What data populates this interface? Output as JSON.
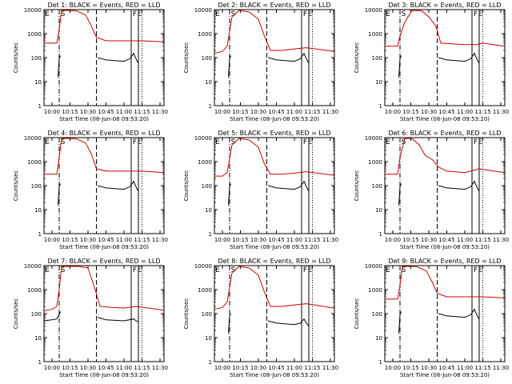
{
  "figure": {
    "title_template": "Det {n}: BLACK = Events, RED = LLD",
    "xlabel": "Start Time (08-Jun-08 09:53:20)",
    "ylabel": "Counts/sec"
  },
  "chart_data": [
    {
      "type": "line",
      "title": "Det 1: BLACK = Events, RED = LLD",
      "xlabel": "Start Time (08-Jun-08 09:53:20)",
      "ylabel": "Counts/sec",
      "xlim": [
        "09:53:20",
        "11:33:20"
      ],
      "ylim": [
        1,
        10000
      ],
      "yscale": "log",
      "xticks": [
        "10:00",
        "10:15",
        "10:30",
        "10:45",
        "11:00",
        "11:15",
        "11:30"
      ],
      "yticks": [
        "1",
        "10",
        "100",
        "1000",
        "10000"
      ],
      "markers": [
        "E",
        "S",
        "F",
        "E"
      ],
      "series": [
        {
          "name": "Events",
          "color": "#000000",
          "x": [
            "10:05",
            "10:06",
            "10:07",
            "10:37",
            "10:38",
            "10:45",
            "11:00",
            "11:05",
            "11:08",
            "11:10",
            "11:11",
            "11:12"
          ],
          "y": [
            15,
            90,
            120,
            null,
            100,
            80,
            70,
            90,
            150,
            90,
            70,
            60
          ]
        },
        {
          "name": "LLD",
          "color": "#cc0000",
          "x": [
            "09:53",
            "10:04",
            "10:06",
            "10:08",
            "10:12",
            "10:20",
            "10:28",
            "10:33",
            "10:37",
            "10:45",
            "11:00",
            "11:15",
            "11:33"
          ],
          "y": [
            400,
            400,
            1500,
            10000,
            12000,
            9000,
            6000,
            2000,
            700,
            500,
            500,
            500,
            450
          ]
        }
      ]
    },
    {
      "type": "line",
      "title": "Det 2: BLACK = Events, RED = LLD",
      "xlabel": "Start Time (08-Jun-08 09:53:20)",
      "ylabel": "Counts/sec",
      "xlim": [
        "09:53:20",
        "11:33:20"
      ],
      "ylim": [
        1,
        10000
      ],
      "yscale": "log",
      "xticks": [
        "10:00",
        "10:15",
        "10:30",
        "10:45",
        "11:00",
        "11:15",
        "11:30"
      ],
      "yticks": [
        "1",
        "10",
        "100",
        "1000",
        "10000"
      ],
      "markers": [
        "E",
        "S",
        "F",
        "E"
      ],
      "series": [
        {
          "name": "Events",
          "color": "#000000",
          "x": [
            "10:05",
            "10:06",
            "10:07",
            "10:37",
            "10:38",
            "10:45",
            "11:00",
            "11:05",
            "11:08",
            "11:10",
            "11:11",
            "11:12"
          ],
          "y": [
            15,
            90,
            120,
            null,
            100,
            80,
            70,
            90,
            150,
            90,
            70,
            60
          ]
        },
        {
          "name": "LLD",
          "color": "#cc0000",
          "x": [
            "09:53",
            "10:00",
            "10:04",
            "10:08",
            "10:14",
            "10:22",
            "10:30",
            "10:35",
            "10:40",
            "10:50",
            "11:00",
            "11:10",
            "11:33"
          ],
          "y": [
            150,
            180,
            300,
            5000,
            12000,
            8000,
            4000,
            800,
            200,
            200,
            230,
            260,
            180
          ]
        }
      ]
    },
    {
      "type": "line",
      "title": "Det 3: BLACK = Events, RED = LLD",
      "xlabel": "Start Time (08-Jun-08 09:53:20)",
      "ylabel": "Counts/sec",
      "xlim": [
        "09:53:20",
        "11:33:20"
      ],
      "ylim": [
        1,
        10000
      ],
      "yscale": "log",
      "xticks": [
        "10:00",
        "10:15",
        "10:30",
        "10:45",
        "11:00",
        "11:15",
        "11:30"
      ],
      "yticks": [
        "1",
        "10",
        "100",
        "1000",
        "10000"
      ],
      "markers": [
        "E",
        "S",
        "F",
        "E"
      ],
      "series": [
        {
          "name": "Events",
          "color": "#000000",
          "x": [
            "10:05",
            "10:06",
            "10:07",
            "10:37",
            "10:38",
            "10:45",
            "11:00",
            "11:05",
            "11:08",
            "11:10",
            "11:11",
            "11:12"
          ],
          "y": [
            15,
            90,
            120,
            null,
            100,
            80,
            70,
            90,
            150,
            90,
            70,
            60
          ]
        },
        {
          "name": "LLD",
          "color": "#cc0000",
          "x": [
            "09:53",
            "10:04",
            "10:06",
            "10:10",
            "10:16",
            "10:24",
            "10:30",
            "10:36",
            "10:40",
            "11:00",
            "11:10",
            "11:15",
            "11:33"
          ],
          "y": [
            300,
            300,
            800,
            3000,
            10000,
            9000,
            5000,
            2000,
            400,
            350,
            350,
            400,
            300
          ]
        }
      ]
    },
    {
      "type": "line",
      "title": "Det 4: BLACK = Events, RED = LLD",
      "xlabel": "Start Time (08-Jun-08 09:53:20)",
      "ylabel": "Counts/sec",
      "xlim": [
        "09:53:20",
        "11:33:20"
      ],
      "ylim": [
        1,
        10000
      ],
      "yscale": "log",
      "xticks": [
        "10:00",
        "10:15",
        "10:30",
        "10:45",
        "11:00",
        "11:15",
        "11:30"
      ],
      "yticks": [
        "1",
        "10",
        "100",
        "1000",
        "10000"
      ],
      "markers": [
        "E",
        "S",
        "F",
        "E"
      ],
      "series": [
        {
          "name": "Events",
          "color": "#000000",
          "x": [
            "10:05",
            "10:06",
            "10:07",
            "10:37",
            "10:38",
            "10:45",
            "11:00",
            "11:05",
            "11:08",
            "11:10",
            "11:11",
            "11:12"
          ],
          "y": [
            15,
            90,
            120,
            null,
            100,
            80,
            70,
            90,
            150,
            90,
            70,
            60
          ]
        },
        {
          "name": "LLD",
          "color": "#cc0000",
          "x": [
            "09:53",
            "10:04",
            "10:06",
            "10:08",
            "10:12",
            "10:20",
            "10:28",
            "10:33",
            "10:37",
            "10:45",
            "11:00",
            "11:15",
            "11:33"
          ],
          "y": [
            300,
            300,
            1500,
            10000,
            12000,
            9000,
            6000,
            2000,
            500,
            400,
            400,
            400,
            350
          ]
        }
      ]
    },
    {
      "type": "line",
      "title": "Det 5: BLACK = Events, RED = LLD",
      "xlabel": "Start Time (08-Jun-08 09:53:20)",
      "ylabel": "Counts/sec",
      "xlim": [
        "09:53:20",
        "11:33:20"
      ],
      "ylim": [
        1,
        10000
      ],
      "yscale": "log",
      "xticks": [
        "10:00",
        "10:15",
        "10:30",
        "10:45",
        "11:00",
        "11:15",
        "11:30"
      ],
      "yticks": [
        "1",
        "10",
        "100",
        "1000",
        "10000"
      ],
      "markers": [
        "E",
        "S",
        "F",
        "E"
      ],
      "series": [
        {
          "name": "Events",
          "color": "#000000",
          "x": [
            "10:05",
            "10:06",
            "10:07",
            "10:37",
            "10:38",
            "10:45",
            "11:00",
            "11:05",
            "11:08",
            "11:10",
            "11:11",
            "11:12"
          ],
          "y": [
            15,
            90,
            120,
            null,
            100,
            80,
            70,
            90,
            150,
            90,
            70,
            60
          ]
        },
        {
          "name": "LLD",
          "color": "#cc0000",
          "x": [
            "09:53",
            "10:00",
            "10:04",
            "10:08",
            "10:14",
            "10:22",
            "10:30",
            "10:35",
            "10:40",
            "10:50",
            "11:00",
            "11:10",
            "11:33"
          ],
          "y": [
            250,
            250,
            350,
            5000,
            12000,
            8000,
            4000,
            800,
            300,
            300,
            330,
            380,
            270
          ]
        }
      ]
    },
    {
      "type": "line",
      "title": "Det 6: BLACK = Events, RED = LLD",
      "xlabel": "Start Time (08-Jun-08 09:53:20)",
      "ylabel": "Counts/sec",
      "xlim": [
        "09:53:20",
        "11:33:20"
      ],
      "ylim": [
        1,
        10000
      ],
      "yscale": "log",
      "xticks": [
        "10:00",
        "10:15",
        "10:30",
        "10:45",
        "11:00",
        "11:15",
        "11:30"
      ],
      "yticks": [
        "1",
        "10",
        "100",
        "1000",
        "10000"
      ],
      "markers": [
        "E",
        "S",
        "F",
        "E"
      ],
      "series": [
        {
          "name": "Events",
          "color": "#000000",
          "x": [
            "10:05",
            "10:06",
            "10:07",
            "10:37",
            "10:38",
            "10:45",
            "11:00",
            "11:05",
            "11:08",
            "11:10",
            "11:11",
            "11:12"
          ],
          "y": [
            15,
            90,
            120,
            null,
            100,
            80,
            70,
            90,
            150,
            90,
            70,
            60
          ]
        },
        {
          "name": "LLD",
          "color": "#cc0000",
          "x": [
            "09:53",
            "10:04",
            "10:06",
            "10:10",
            "10:16",
            "10:22",
            "10:27",
            "10:33",
            "10:38",
            "10:45",
            "11:00",
            "11:12",
            "11:33"
          ],
          "y": [
            300,
            300,
            1500,
            10000,
            9000,
            5000,
            1800,
            1200,
            600,
            400,
            350,
            500,
            350
          ]
        }
      ]
    },
    {
      "type": "line",
      "title": "Det 7: BLACK = Events, RED = LLD",
      "xlabel": "Start Time (08-Jun-08 09:53:20)",
      "ylabel": "Counts/sec",
      "xlim": [
        "09:53:20",
        "11:33:20"
      ],
      "ylim": [
        1,
        10000
      ],
      "yscale": "log",
      "xticks": [
        "10:00",
        "10:15",
        "10:30",
        "10:45",
        "11:00",
        "11:15",
        "11:30"
      ],
      "yticks": [
        "1",
        "10",
        "100",
        "1000",
        "10000"
      ],
      "markers": [
        "E",
        "S",
        "F",
        "E"
      ],
      "series": [
        {
          "name": "Events",
          "color": "#000000",
          "x": [
            "09:53",
            "10:00",
            "10:04",
            "10:06",
            "10:07",
            "10:37",
            "10:38",
            "10:45",
            "11:00",
            "11:08",
            "11:10",
            "11:12"
          ],
          "y": [
            50,
            55,
            60,
            90,
            120,
            null,
            70,
            55,
            50,
            60,
            50,
            45
          ]
        },
        {
          "name": "LLD",
          "color": "#cc0000",
          "x": [
            "09:53",
            "10:00",
            "10:04",
            "10:06",
            "10:08",
            "10:14",
            "10:22",
            "10:30",
            "10:36",
            "10:40",
            "10:50",
            "11:00",
            "11:10",
            "11:33"
          ],
          "y": [
            130,
            150,
            200,
            1000,
            10000,
            12000,
            11000,
            8000,
            1000,
            200,
            180,
            170,
            200,
            140
          ]
        }
      ]
    },
    {
      "type": "line",
      "title": "Det 8: BLACK = Events, RED = LLD",
      "xlabel": "Start Time (08-Jun-08 09:53:20)",
      "ylabel": "Counts/sec",
      "xlim": [
        "09:53:20",
        "11:33:20"
      ],
      "ylim": [
        1,
        10000
      ],
      "yscale": "log",
      "xticks": [
        "10:00",
        "10:15",
        "10:30",
        "10:45",
        "11:00",
        "11:15",
        "11:30"
      ],
      "yticks": [
        "1",
        "10",
        "100",
        "1000",
        "10000"
      ],
      "markers": [
        "E",
        "S",
        "F",
        "E"
      ],
      "series": [
        {
          "name": "Events",
          "color": "#000000",
          "x": [
            "10:05",
            "10:06",
            "10:07",
            "10:37",
            "10:38",
            "10:45",
            "11:00",
            "11:05",
            "11:08",
            "11:10",
            "11:11",
            "11:12"
          ],
          "y": [
            15,
            80,
            100,
            null,
            50,
            40,
            35,
            40,
            60,
            40,
            35,
            30
          ]
        },
        {
          "name": "LLD",
          "color": "#cc0000",
          "x": [
            "09:53",
            "10:00",
            "10:04",
            "10:08",
            "10:14",
            "10:22",
            "10:30",
            "10:35",
            "10:40",
            "10:50",
            "11:00",
            "11:10",
            "11:33"
          ],
          "y": [
            150,
            180,
            300,
            5000,
            12000,
            8000,
            4000,
            800,
            200,
            200,
            230,
            260,
            170
          ]
        }
      ]
    },
    {
      "type": "line",
      "title": "Det 9: BLACK = Events, RED = LLD",
      "xlabel": "Start Time (08-Jun-08 09:53:20)",
      "ylabel": "Counts/sec",
      "xlim": [
        "09:53:20",
        "11:33:20"
      ],
      "ylim": [
        1,
        10000
      ],
      "yscale": "log",
      "xticks": [
        "10:00",
        "10:15",
        "10:30",
        "10:45",
        "11:00",
        "11:15",
        "11:30"
      ],
      "yticks": [
        "1",
        "10",
        "100",
        "1000",
        "10000"
      ],
      "markers": [
        "E",
        "S",
        "F",
        "E"
      ],
      "series": [
        {
          "name": "Events",
          "color": "#000000",
          "x": [
            "10:05",
            "10:06",
            "10:07",
            "10:37",
            "10:38",
            "10:45",
            "11:00",
            "11:05",
            "11:08",
            "11:10",
            "11:11",
            "11:12"
          ],
          "y": [
            15,
            90,
            120,
            null,
            100,
            80,
            70,
            90,
            150,
            90,
            70,
            60
          ]
        },
        {
          "name": "LLD",
          "color": "#cc0000",
          "x": [
            "09:53",
            "10:04",
            "10:06",
            "10:08",
            "10:12",
            "10:20",
            "10:28",
            "10:33",
            "10:37",
            "10:45",
            "11:00",
            "11:15",
            "11:33"
          ],
          "y": [
            400,
            400,
            1500,
            10000,
            12000,
            9000,
            6000,
            2000,
            700,
            500,
            500,
            500,
            450
          ]
        }
      ]
    }
  ],
  "vlines": [
    {
      "time": "10:06",
      "style": "dash-dot"
    },
    {
      "time": "10:37",
      "style": "dashed"
    },
    {
      "time": "11:06",
      "style": "solid"
    },
    {
      "time": "11:12",
      "style": "solid"
    },
    {
      "time": "11:15",
      "style": "dotted"
    }
  ]
}
